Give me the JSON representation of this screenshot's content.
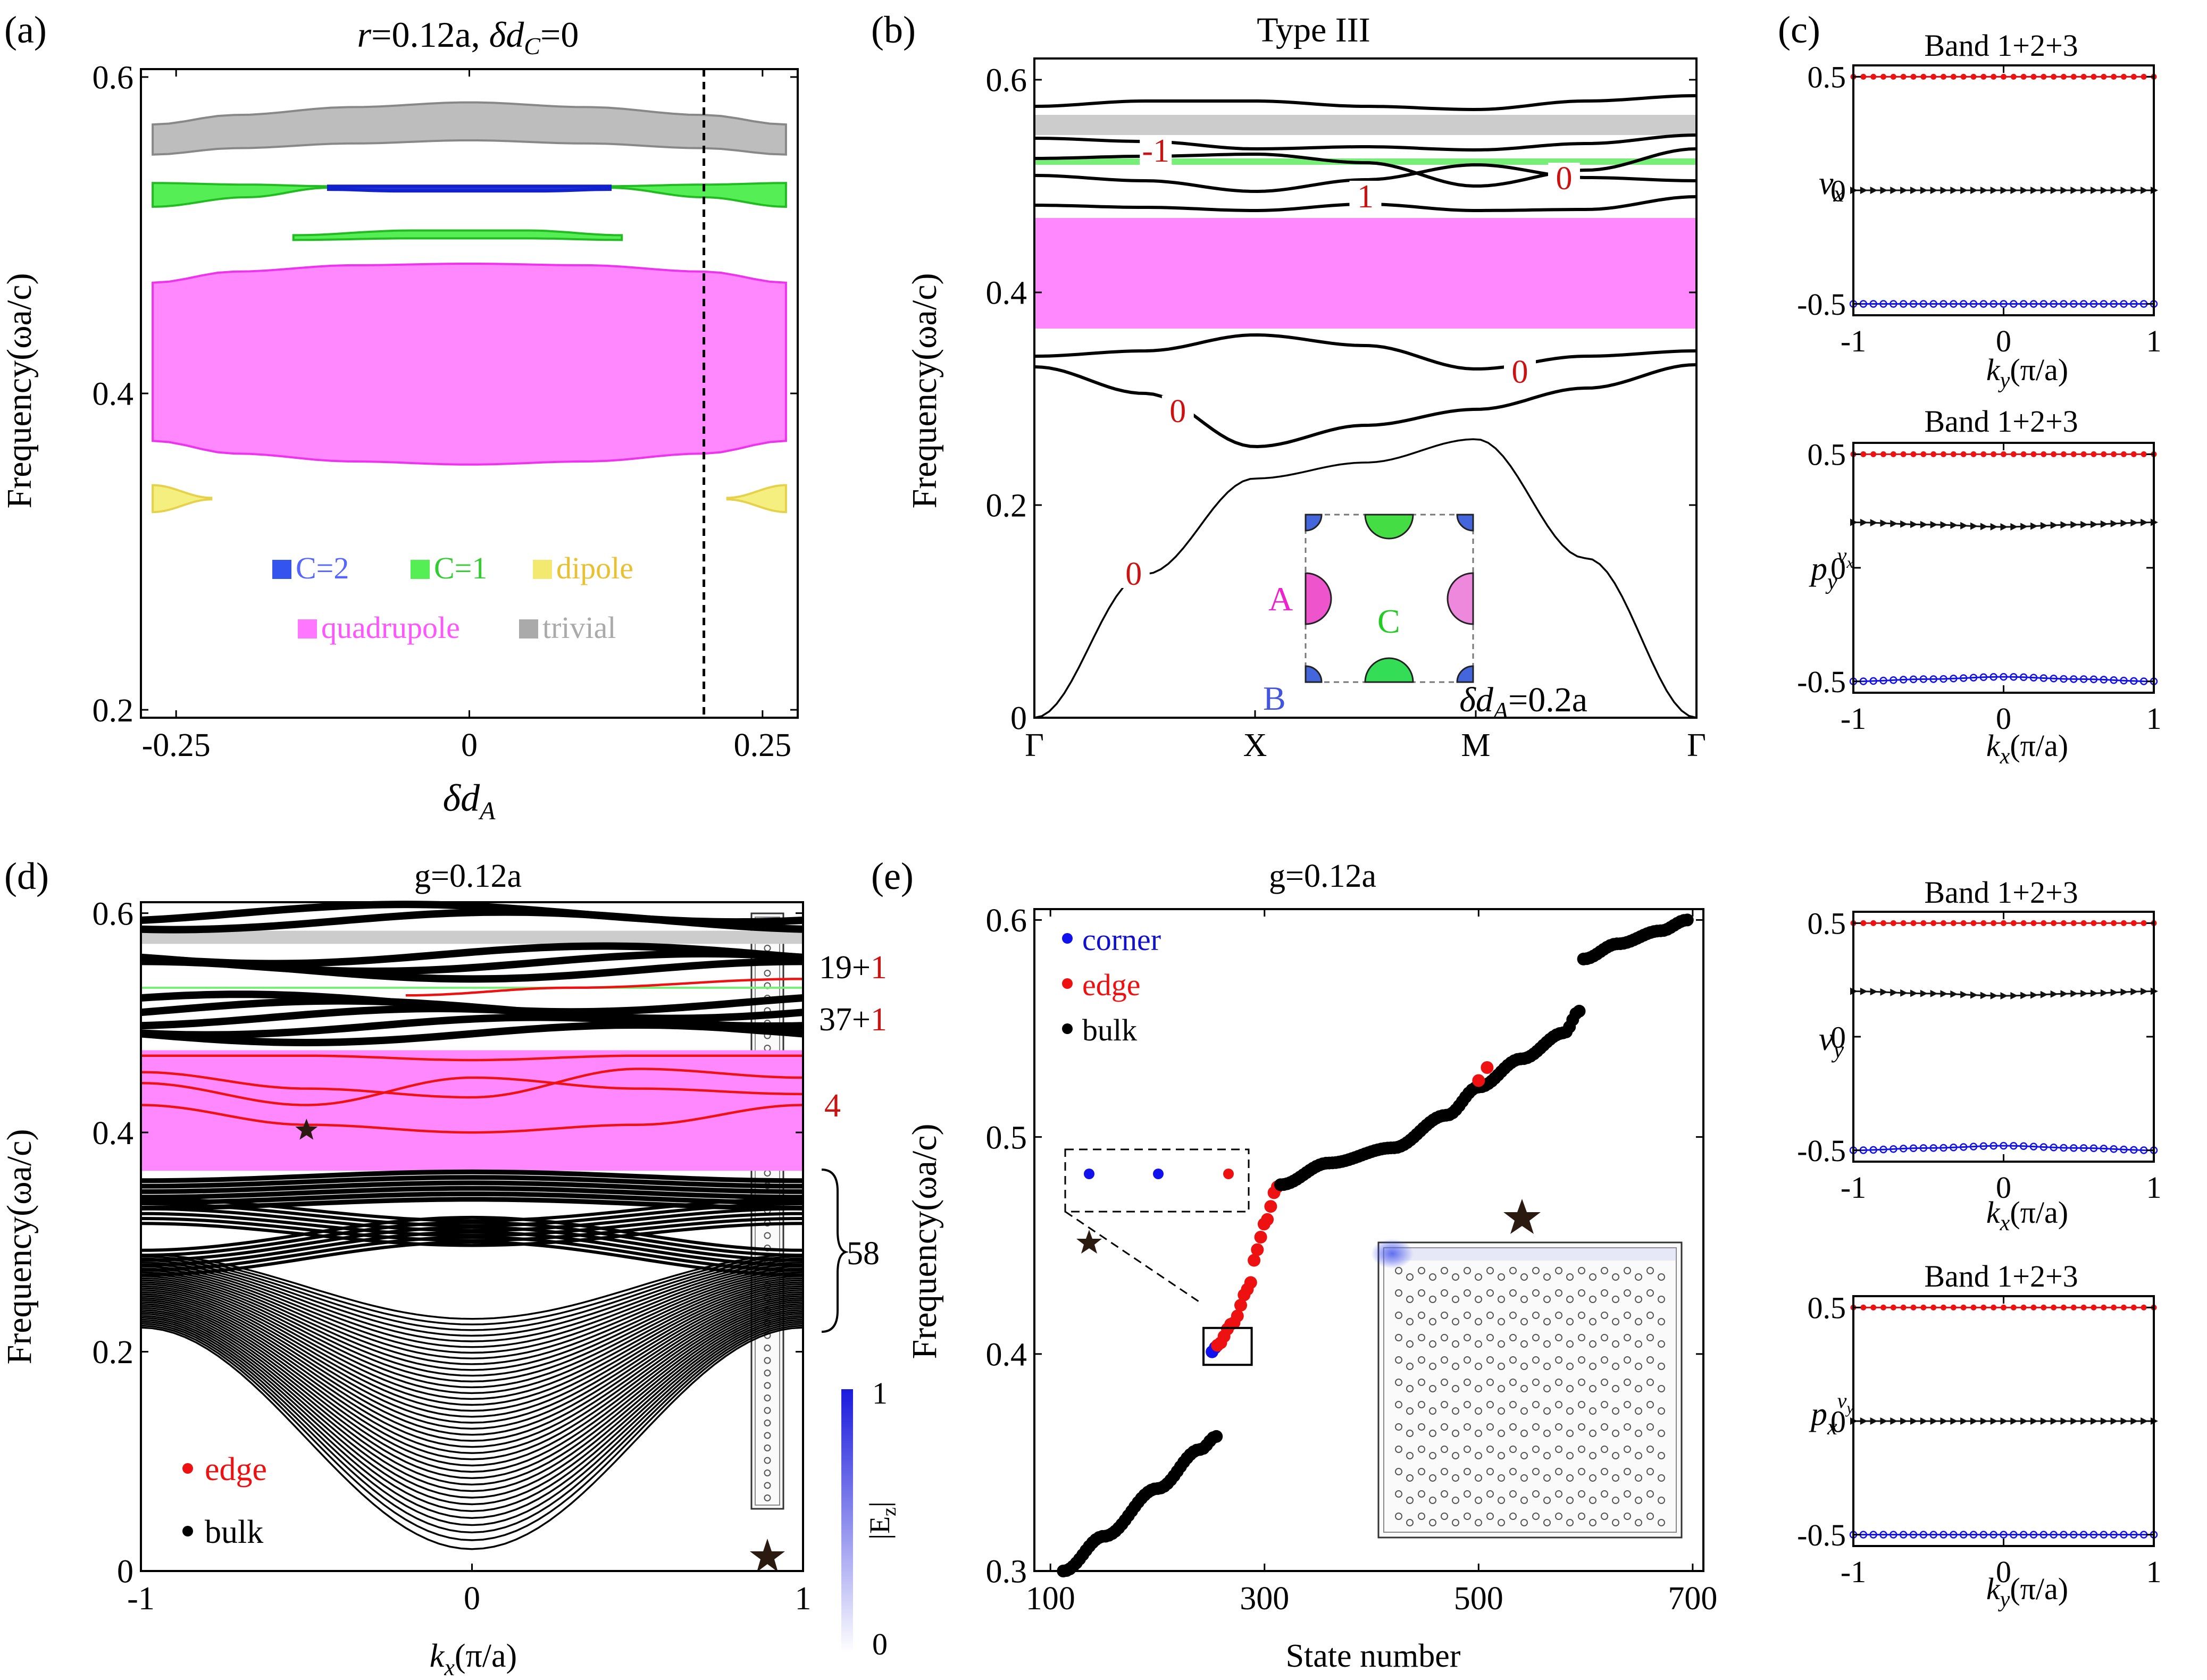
{
  "figure": {
    "panel_labels": [
      "(a)",
      "(b)",
      "(c)",
      "(d)",
      "(e)"
    ],
    "colors": {
      "trivial": "#bdbdbd",
      "chern2": "#3344dd",
      "chern1": "#44ee44",
      "dipole": "#f5ef7a",
      "quadrupole": "#ff88ff",
      "quadrupole_edge": "#ee22ee",
      "edge": "#ee1111",
      "bulk": "#000000",
      "corner": "#1111ee",
      "number_red": "#cc1111"
    }
  },
  "panel_a": {
    "label": "(a)",
    "title_parts": [
      "r",
      "=0.12a, ",
      "δd",
      "C",
      "=0"
    ],
    "ylabel": "Frequency(ωa/c)",
    "xlabel_main": "δd",
    "xlabel_sub": "A",
    "legend": [
      "C=2",
      "C=1",
      "dipole",
      "quadrupole",
      "trivial"
    ]
  },
  "panel_b": {
    "label": "(b)",
    "title": "Type III",
    "ylabel": "Frequency(ωa/c)",
    "annotation_main": "δd",
    "annotation_sub": "A",
    "annotation_value": "=0.2a",
    "inset_labels": [
      "A",
      "B",
      "C"
    ],
    "gap_numbers": [
      "-1",
      "0",
      "1",
      "0",
      "0",
      "0"
    ]
  },
  "panel_c": {
    "label": "(c)",
    "subplots": [
      {
        "title": "Band 1+2+3",
        "ylabel": "v",
        "ylabel_sub": "x",
        "xlabel": "k",
        "xlabel_sub": "y",
        "xlabel_unit": "(π/a)"
      },
      {
        "title": "Band 1+2+3",
        "ylabel": "p",
        "ylabel_sub": "y",
        "ylabel_sup": "v",
        "ylabel_supsub": "x",
        "xlabel": "k",
        "xlabel_sub": "x",
        "xlabel_unit": "(π/a)"
      },
      {
        "title": "Band 1+2+3",
        "ylabel": "v",
        "ylabel_sub": "y",
        "xlabel": "k",
        "xlabel_sub": "x",
        "xlabel_unit": "(π/a)"
      },
      {
        "title": "Band 1+2+3",
        "ylabel": "p",
        "ylabel_sub": "x",
        "ylabel_sup": "v",
        "ylabel_supsub": "y",
        "xlabel": "k",
        "xlabel_sub": "y",
        "xlabel_unit": "(π/a)"
      }
    ]
  },
  "panel_d": {
    "label": "(d)",
    "title": "g=0.12a",
    "ylabel": "Frequency(ωa/c)",
    "xlabel": "k",
    "xlabel_sub": "x",
    "xlabel_unit": "(π/a)",
    "counts": [
      {
        "black": "19+",
        "red": "1"
      },
      {
        "black": "37+",
        "red": "1"
      },
      {
        "black": "",
        "red": "4"
      },
      {
        "black": "58",
        "red": ""
      }
    ],
    "legend": [
      "edge",
      "bulk"
    ],
    "colorbar_label": "|E",
    "colorbar_label_sub": "z",
    "colorbar_label_end": "|",
    "colorbar_ticks": [
      "1",
      "0"
    ]
  },
  "panel_e": {
    "label": "(e)",
    "title": "g=0.12a",
    "ylabel": "Frequency(ωa/c)",
    "xlabel": "State number",
    "legend": [
      "corner",
      "edge",
      "bulk"
    ]
  },
  "chart_data": [
    {
      "id": "a",
      "type": "area",
      "title": "r=0.12a, δdC=0",
      "xlabel": "δdA",
      "ylabel": "Frequency(ωa/c)",
      "xlim": [
        -0.28,
        0.28
      ],
      "ylim": [
        0.195,
        0.605
      ],
      "xticks": [
        -0.25,
        0,
        0.25
      ],
      "xtick_labels": [
        "-0.25",
        "0",
        "0.25"
      ],
      "yticks": [
        0.2,
        0.4,
        0.6
      ],
      "ytick_labels": [
        "0.2",
        "0.4",
        "0.6"
      ],
      "vline": 0.2,
      "series": [
        {
          "name": "trivial",
          "x": [
            -0.27,
            -0.2,
            -0.1,
            0,
            0.1,
            0.2,
            0.27
          ],
          "lower": [
            0.551,
            0.555,
            0.558,
            0.56,
            0.558,
            0.555,
            0.551
          ],
          "upper": [
            0.57,
            0.576,
            0.581,
            0.584,
            0.581,
            0.576,
            0.57
          ]
        },
        {
          "name": "C=1",
          "x": [
            -0.27,
            -0.19,
            -0.12
          ],
          "lower": [
            0.518,
            0.524,
            0.53
          ],
          "upper": [
            0.533,
            0.532,
            0.531
          ]
        },
        {
          "name": "C=1",
          "x": [
            0.12,
            0.2,
            0.27
          ],
          "lower": [
            0.53,
            0.524,
            0.518
          ],
          "upper": [
            0.531,
            0.532,
            0.533
          ]
        },
        {
          "name": "C=1",
          "x": [
            -0.15,
            -0.05,
            0.05,
            0.13
          ],
          "lower": [
            0.497,
            0.498,
            0.498,
            0.497
          ],
          "upper": [
            0.5,
            0.503,
            0.503,
            0.5
          ]
        },
        {
          "name": "C=2",
          "x": [
            -0.12,
            -0.06,
            0,
            0.06,
            0.12
          ],
          "lower": [
            0.529,
            0.528,
            0.528,
            0.528,
            0.529
          ],
          "upper": [
            0.531,
            0.531,
            0.531,
            0.531,
            0.531
          ]
        },
        {
          "name": "quadrupole",
          "x": [
            -0.27,
            -0.2,
            -0.1,
            0,
            0.1,
            0.2,
            0.27
          ],
          "lower": [
            0.37,
            0.362,
            0.357,
            0.355,
            0.357,
            0.362,
            0.37
          ],
          "upper": [
            0.47,
            0.477,
            0.481,
            0.482,
            0.481,
            0.477,
            0.47
          ]
        },
        {
          "name": "dipole",
          "x": [
            -0.27,
            -0.22
          ],
          "lower": [
            0.325,
            0.333
          ],
          "upper": [
            0.342,
            0.334
          ]
        },
        {
          "name": "dipole",
          "x": [
            0.22,
            0.27
          ],
          "lower": [
            0.333,
            0.325
          ],
          "upper": [
            0.334,
            0.342
          ]
        }
      ]
    },
    {
      "id": "b",
      "type": "line",
      "title": "Type III",
      "ylabel": "Frequency(ωa/c)",
      "ylim": [
        0,
        0.62
      ],
      "yticks": [
        0,
        0.2,
        0.4,
        0.6
      ],
      "ytick_labels": [
        "0",
        "0.2",
        "0.4",
        "0.6"
      ],
      "k_path": [
        "Γ",
        "X",
        "M",
        "Γ"
      ],
      "k_position": [
        0,
        1,
        2,
        3
      ],
      "gaps": [
        {
          "name": "trivial",
          "range": [
            0.548,
            0.567
          ]
        },
        {
          "name": "quadrupole",
          "range": [
            0.366,
            0.47
          ]
        },
        {
          "name": "C=1",
          "range": [
            0.52,
            0.526
          ]
        }
      ],
      "bands": [
        {
          "x": [
            0,
            0.5,
            1,
            1.5,
            2,
            2.5,
            3
          ],
          "y": [
            0,
            0.135,
            0.225,
            0.24,
            0.262,
            0.15,
            0
          ]
        },
        {
          "x": [
            0,
            0.5,
            1,
            1.5,
            2,
            2.5,
            3
          ],
          "y": [
            0.33,
            0.305,
            0.255,
            0.275,
            0.29,
            0.31,
            0.332
          ]
        },
        {
          "x": [
            0,
            0.5,
            1,
            1.5,
            2,
            2.5,
            3
          ],
          "y": [
            0.34,
            0.345,
            0.36,
            0.35,
            0.328,
            0.34,
            0.345
          ]
        },
        {
          "x": [
            0,
            0.5,
            1,
            1.5,
            2,
            2.5,
            3
          ],
          "y": [
            0.482,
            0.48,
            0.477,
            0.483,
            0.477,
            0.478,
            0.49
          ]
        },
        {
          "x": [
            0,
            0.5,
            1,
            1.5,
            2,
            2.5,
            3
          ],
          "y": [
            0.51,
            0.505,
            0.495,
            0.506,
            0.52,
            0.508,
            0.505
          ]
        },
        {
          "x": [
            0,
            0.5,
            1,
            1.5,
            2,
            2.5,
            3
          ],
          "y": [
            0.526,
            0.528,
            0.53,
            0.522,
            0.5,
            0.515,
            0.535
          ]
        },
        {
          "x": [
            0,
            0.5,
            1,
            1.5,
            2,
            2.5,
            3
          ],
          "y": [
            0.545,
            0.542,
            0.535,
            0.537,
            0.534,
            0.54,
            0.548
          ]
        },
        {
          "x": [
            0,
            0.5,
            1,
            1.5,
            2,
            2.5,
            3
          ],
          "y": [
            0.575,
            0.58,
            0.58,
            0.575,
            0.572,
            0.58,
            0.585
          ]
        }
      ],
      "gap_labels": [
        {
          "text": "-1",
          "x": 0.55,
          "y": 0.528
        },
        {
          "text": "0",
          "x": 2.4,
          "y": 0.502
        },
        {
          "text": "1",
          "x": 1.5,
          "y": 0.485
        },
        {
          "text": "0",
          "x": 2.2,
          "y": 0.32
        },
        {
          "text": "0",
          "x": 0.65,
          "y": 0.283
        },
        {
          "text": "0",
          "x": 0.45,
          "y": 0.13
        }
      ]
    },
    {
      "id": "c1",
      "type": "scatter",
      "title": "Band 1+2+3",
      "ylabel": "vx",
      "xlabel": "ky(π/a)",
      "xlim": [
        -1,
        1
      ],
      "ylim": [
        -0.55,
        0.55
      ],
      "xticks": [
        -1,
        0,
        1
      ],
      "yticks": [
        -0.5,
        0,
        0.5
      ],
      "ytick_labels": [
        "-0.5",
        "0",
        "0.5"
      ],
      "series": [
        {
          "marker": "dot",
          "color": "red",
          "y": [
            0.5,
            0.5,
            0.5,
            0.5,
            0.5
          ]
        },
        {
          "marker": "triangle",
          "color": "black",
          "y": [
            0,
            0,
            0,
            0,
            0
          ]
        },
        {
          "marker": "circle",
          "color": "blue",
          "y": [
            -0.5,
            -0.5,
            -0.5,
            -0.5,
            -0.5
          ]
        }
      ]
    },
    {
      "id": "c2",
      "type": "scatter",
      "title": "Band 1+2+3",
      "ylabel": "py^vx",
      "xlabel": "kx(π/a)",
      "xlim": [
        -1,
        1
      ],
      "ylim": [
        -0.55,
        0.55
      ],
      "xticks": [
        -1,
        0,
        1
      ],
      "yticks": [
        -0.5,
        0,
        0.5
      ],
      "ytick_labels": [
        "-0.5",
        "0",
        "0.5"
      ],
      "series": [
        {
          "marker": "dot",
          "color": "red",
          "y": [
            0.5,
            0.5,
            0.5,
            0.5,
            0.5
          ]
        },
        {
          "marker": "triangle",
          "color": "black",
          "y": [
            0.2,
            0.19,
            0.18,
            0.19,
            0.2
          ]
        },
        {
          "marker": "circle",
          "color": "blue",
          "y": [
            -0.5,
            -0.49,
            -0.48,
            -0.49,
            -0.5
          ]
        }
      ]
    },
    {
      "id": "c3",
      "type": "scatter",
      "title": "Band 1+2+3",
      "ylabel": "vy",
      "xlabel": "kx(π/a)",
      "xlim": [
        -1,
        1
      ],
      "ylim": [
        -0.55,
        0.55
      ],
      "xticks": [
        -1,
        0,
        1
      ],
      "yticks": [
        -0.5,
        0,
        0.5
      ],
      "ytick_labels": [
        "-0.5",
        "0",
        "0.5"
      ],
      "series": [
        {
          "marker": "dot",
          "color": "red",
          "y": [
            0.5,
            0.5,
            0.5,
            0.5,
            0.5
          ]
        },
        {
          "marker": "triangle",
          "color": "black",
          "y": [
            0.2,
            0.19,
            0.18,
            0.19,
            0.2
          ]
        },
        {
          "marker": "circle",
          "color": "blue",
          "y": [
            -0.5,
            -0.49,
            -0.48,
            -0.49,
            -0.5
          ]
        }
      ]
    },
    {
      "id": "c4",
      "type": "scatter",
      "title": "Band 1+2+3",
      "ylabel": "px^vy",
      "xlabel": "ky(π/a)",
      "xlim": [
        -1,
        1
      ],
      "ylim": [
        -0.55,
        0.55
      ],
      "xticks": [
        -1,
        0,
        1
      ],
      "yticks": [
        -0.5,
        0,
        0.5
      ],
      "ytick_labels": [
        "-0.5",
        "0",
        "0.5"
      ],
      "series": [
        {
          "marker": "dot",
          "color": "red",
          "y": [
            0.5,
            0.5,
            0.5,
            0.5,
            0.5
          ]
        },
        {
          "marker": "triangle",
          "color": "black",
          "y": [
            0,
            0,
            0,
            0,
            0
          ]
        },
        {
          "marker": "circle",
          "color": "blue",
          "y": [
            -0.5,
            -0.5,
            -0.5,
            -0.5,
            -0.5
          ]
        }
      ]
    },
    {
      "id": "d",
      "type": "line",
      "title": "g=0.12a",
      "xlabel": "kx(π/a)",
      "ylabel": "Frequency(ωa/c)",
      "xlim": [
        -1,
        1
      ],
      "ylim": [
        0,
        0.61
      ],
      "xticks": [
        -1,
        0,
        1
      ],
      "xtick_labels": [
        "-1",
        "0",
        "1"
      ],
      "yticks": [
        0,
        0.2,
        0.4,
        0.6
      ],
      "ytick_labels": [
        "0",
        "0.2",
        "0.4",
        "0.6"
      ],
      "gaps": [
        {
          "name": "trivial",
          "range": [
            0.572,
            0.584
          ]
        },
        {
          "name": "quadrupole",
          "range": [
            0.365,
            0.475
          ]
        }
      ],
      "bulk_band_count": 58,
      "edge_bands": [
        {
          "x": [
            -1,
            -0.5,
            0,
            0.5,
            1
          ],
          "y": [
            0.425,
            0.407,
            0.4,
            0.407,
            0.425
          ]
        },
        {
          "x": [
            -1,
            -0.5,
            0,
            0.5,
            1
          ],
          "y": [
            0.445,
            0.425,
            0.45,
            0.44,
            0.435
          ]
        },
        {
          "x": [
            -1,
            -0.5,
            0,
            0.5,
            1
          ],
          "y": [
            0.455,
            0.44,
            0.432,
            0.458,
            0.45
          ]
        },
        {
          "x": [
            -1,
            -0.5,
            0,
            0.5,
            1
          ],
          "y": [
            0.47,
            0.47,
            0.466,
            0.47,
            0.47
          ]
        },
        {
          "x": [
            -0.2,
            0.3,
            1
          ],
          "y": [
            0.525,
            0.532,
            0.54
          ]
        }
      ],
      "star": {
        "x": -0.5,
        "y": 0.402
      }
    },
    {
      "id": "e",
      "type": "scatter",
      "title": "g=0.12a",
      "xlabel": "State number",
      "ylabel": "Frequency(ωa/c)",
      "xlim": [
        85,
        710
      ],
      "ylim": [
        0.3,
        0.605
      ],
      "xticks": [
        100,
        300,
        500,
        700
      ],
      "xtick_labels": [
        "100",
        "300",
        "500",
        "700"
      ],
      "yticks": [
        0.3,
        0.4,
        0.5,
        0.6
      ],
      "ytick_labels": [
        "0.3",
        "0.4",
        "0.5",
        "0.6"
      ],
      "series": [
        {
          "name": "bulk",
          "x": [
            112,
            150,
            200,
            240,
            255
          ],
          "y": [
            0.3,
            0.316,
            0.338,
            0.356,
            0.362
          ]
        },
        {
          "name": "corner",
          "x": [
            251,
            254
          ],
          "y": [
            0.401,
            0.403
          ]
        },
        {
          "name": "edge",
          "x": [
            256,
            270,
            285,
            293,
            300,
            312
          ],
          "y": [
            0.404,
            0.414,
            0.43,
            0.448,
            0.46,
            0.477
          ]
        },
        {
          "name": "bulk",
          "x": [
            315,
            360,
            420,
            470,
            500,
            540,
            580,
            594
          ],
          "y": [
            0.478,
            0.488,
            0.495,
            0.51,
            0.523,
            0.536,
            0.548,
            0.558
          ]
        },
        {
          "name": "edge",
          "x": [
            500,
            508
          ],
          "y": [
            0.526,
            0.532
          ]
        },
        {
          "name": "bulk",
          "x": [
            598,
            630,
            670,
            695
          ],
          "y": [
            0.582,
            0.589,
            0.595,
            0.6
          ]
        }
      ],
      "star": {
        "x": 545,
        "y": 0.46
      }
    }
  ]
}
